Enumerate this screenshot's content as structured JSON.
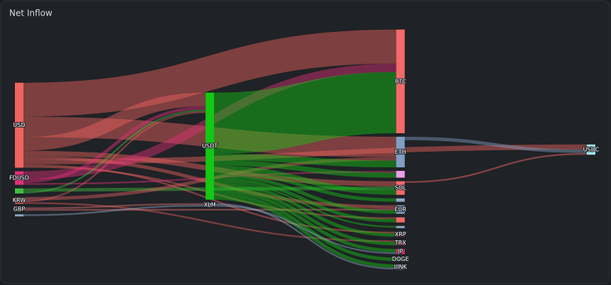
{
  "chart_data": {
    "type": "sankey",
    "title": "Net Inflow",
    "nodes": [
      {
        "name": "USD",
        "color": "#f0645f"
      },
      {
        "name": "FDUSD",
        "color": "#e0307a"
      },
      {
        "name": null,
        "color": "#3fbf3f"
      },
      {
        "name": "KRW",
        "color": "#e06060"
      },
      {
        "name": "GBP",
        "color": "#e07070"
      },
      {
        "name": null,
        "color": "#8fa8c8"
      },
      {
        "name": "USDT",
        "color": "#14c814"
      },
      {
        "name": "XLM",
        "color": "#8fa8c8"
      },
      {
        "name": "BTC",
        "color": "#f36a6a"
      },
      {
        "name": "ETH",
        "color": "#7f9fc4"
      },
      {
        "name": null,
        "color": "#e8a0e8"
      },
      {
        "name": "SOL",
        "color": "#f36a6a"
      },
      {
        "name": null,
        "color": "#8fa8c8"
      },
      {
        "name": "EUR",
        "color": "#7f9fc4"
      },
      {
        "name": null,
        "color": "#f36a6a"
      },
      {
        "name": null,
        "color": "#8fa8c8"
      },
      {
        "name": "XRP",
        "color": "#e03070"
      },
      {
        "name": "TRX",
        "color": "#e03070"
      },
      {
        "name": "JP",
        "color": "#e03070"
      },
      {
        "name": "DOGE",
        "color": "#2a9a2a"
      },
      {
        "name": "LINK",
        "color": "#8fa8c8"
      },
      {
        "name": "USDC",
        "color": "#a0e8f0"
      }
    ],
    "links": [
      {
        "source": 0,
        "target": 8,
        "value": 20
      },
      {
        "source": 0,
        "target": 9,
        "value": 12
      },
      {
        "source": 0,
        "target": 6,
        "value": 8
      },
      {
        "source": 0,
        "target": 11,
        "value": 3
      },
      {
        "source": 0,
        "target": 13,
        "value": 2
      },
      {
        "source": 0,
        "target": 21,
        "value": 3
      },
      {
        "source": 0,
        "target": 16,
        "value": 1
      },
      {
        "source": 0,
        "target": 14,
        "value": 1
      },
      {
        "source": 1,
        "target": 8,
        "value": 5
      },
      {
        "source": 1,
        "target": 6,
        "value": 2
      },
      {
        "source": 1,
        "target": 10,
        "value": 1
      },
      {
        "source": 2,
        "target": 11,
        "value": 2
      },
      {
        "source": 2,
        "target": 6,
        "value": 1
      },
      {
        "source": 3,
        "target": 9,
        "value": 2
      },
      {
        "source": 3,
        "target": 6,
        "value": 1
      },
      {
        "source": 3,
        "target": 17,
        "value": 1
      },
      {
        "source": 4,
        "target": 7,
        "value": 1
      },
      {
        "source": 4,
        "target": 13,
        "value": 1
      },
      {
        "source": 5,
        "target": 7,
        "value": 1
      },
      {
        "source": 6,
        "target": 8,
        "value": 36
      },
      {
        "source": 6,
        "target": 9,
        "value": 4
      },
      {
        "source": 6,
        "target": 10,
        "value": 3
      },
      {
        "source": 6,
        "target": 11,
        "value": 3
      },
      {
        "source": 6,
        "target": 12,
        "value": 2
      },
      {
        "source": 6,
        "target": 13,
        "value": 2
      },
      {
        "source": 6,
        "target": 14,
        "value": 2
      },
      {
        "source": 6,
        "target": 15,
        "value": 1
      },
      {
        "source": 6,
        "target": 16,
        "value": 2
      },
      {
        "source": 6,
        "target": 17,
        "value": 2
      },
      {
        "source": 6,
        "target": 18,
        "value": 2
      },
      {
        "source": 6,
        "target": 19,
        "value": 2
      },
      {
        "source": 6,
        "target": 20,
        "value": 2
      },
      {
        "source": 7,
        "target": 20,
        "value": 1
      },
      {
        "source": 7,
        "target": 18,
        "value": 1
      },
      {
        "source": 9,
        "target": 21,
        "value": 2
      },
      {
        "source": 11,
        "target": 21,
        "value": 1
      }
    ]
  }
}
